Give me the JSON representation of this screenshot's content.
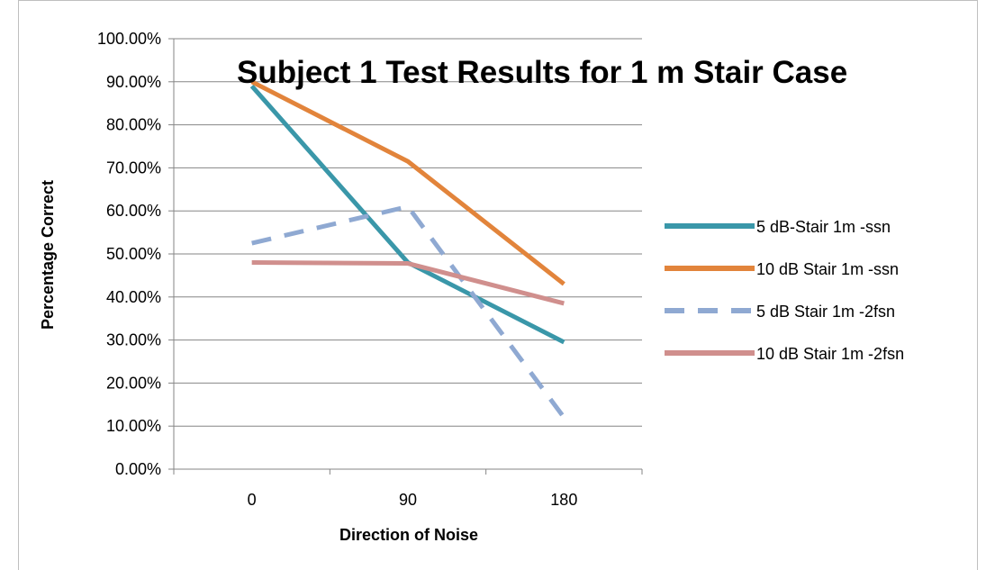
{
  "chart_data": {
    "type": "line",
    "title": "Subject 1 Test Results for  1 m Stair Case",
    "xlabel": "Direction of Noise",
    "ylabel": "Percentage Correct",
    "categories": [
      "0",
      "90",
      "180"
    ],
    "ylim": [
      0,
      1
    ],
    "yticks": [
      "0.00%",
      "10.00%",
      "20.00%",
      "30.00%",
      "40.00%",
      "50.00%",
      "60.00%",
      "70.00%",
      "80.00%",
      "90.00%",
      "100.00%"
    ],
    "grid": true,
    "legend_position": "right",
    "series": [
      {
        "name": "5 dB-Stair 1m -ssn",
        "values": [
          0.89,
          0.48,
          0.295
        ],
        "color": "#3a97a9",
        "dashed": false
      },
      {
        "name": "10 dB Stair 1m -ssn",
        "values": [
          0.9,
          0.715,
          0.43
        ],
        "color": "#e2843b",
        "dashed": false
      },
      {
        "name": "5 dB Stair 1m -2fsn",
        "values": [
          0.525,
          0.61,
          0.12
        ],
        "color": "#8fa9d2",
        "dashed": true
      },
      {
        "name": "10 dB Stair 1m -2fsn",
        "values": [
          0.48,
          0.478,
          0.385
        ],
        "color": "#d08f8d",
        "dashed": false
      }
    ]
  }
}
